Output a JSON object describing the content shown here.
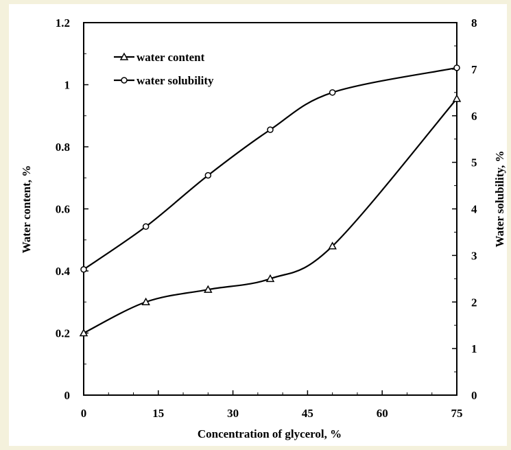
{
  "chart_data": {
    "type": "line",
    "title": "",
    "xlabel": "Concentration of glycerol, %",
    "ylabel": "Water content, %",
    "y2label": "Water solubility, %",
    "x_ticks": [
      "0",
      "15",
      "30",
      "45",
      "60",
      "75"
    ],
    "xlim": [
      0,
      75
    ],
    "y_ticks": [
      "0",
      "0.2",
      "0.4",
      "0.6",
      "0.8",
      "1",
      "1.2"
    ],
    "ylim": [
      0,
      1.2
    ],
    "y2_ticks": [
      "0",
      "1",
      "2",
      "3",
      "4",
      "5",
      "6",
      "7",
      "8"
    ],
    "y2lim": [
      0,
      8
    ],
    "grid": false,
    "legend_position": "top-left",
    "series": [
      {
        "name": "water content",
        "axis": "left",
        "marker": "triangle",
        "x": [
          0,
          12.5,
          25,
          37.5,
          50,
          75
        ],
        "y": [
          0.2,
          0.3,
          0.34,
          0.375,
          0.48,
          0.955
        ]
      },
      {
        "name": "water solubility",
        "axis": "right",
        "marker": "circle",
        "x": [
          0,
          12.5,
          25,
          37.5,
          50,
          75
        ],
        "y": [
          2.7,
          3.62,
          4.72,
          5.7,
          6.5,
          7.03
        ]
      }
    ],
    "colors": {
      "line": "#000000",
      "marker_fill": "#ffffff",
      "background": "#ffffff",
      "frame": "#f4f1dc"
    }
  }
}
